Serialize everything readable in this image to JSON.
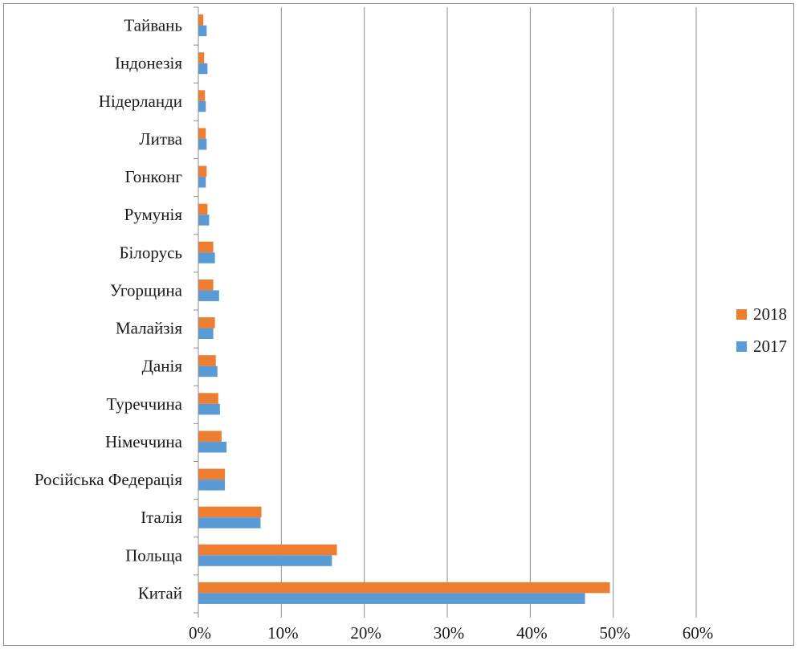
{
  "chart_data": {
    "type": "bar",
    "orientation": "horizontal",
    "categories": [
      "Китай",
      "Польща",
      "Італія",
      "Російська Федерація",
      "Німеччина",
      "Туреччина",
      "Данія",
      "Малайзія",
      "Угорщина",
      "Білорусь",
      "Румунія",
      "Гонконг",
      "Литва",
      "Нідерланди",
      "Індонезія",
      "Тайвань"
    ],
    "series": [
      {
        "name": "2018",
        "color": "#ED7D31",
        "values": [
          49.6,
          16.7,
          7.6,
          3.2,
          2.8,
          2.4,
          2.1,
          2.0,
          1.8,
          1.8,
          1.1,
          1.0,
          0.9,
          0.8,
          0.7,
          0.6
        ]
      },
      {
        "name": "2017",
        "color": "#5B9BD5",
        "values": [
          46.6,
          16.1,
          7.5,
          3.2,
          3.4,
          2.6,
          2.3,
          1.8,
          2.5,
          2.0,
          1.3,
          0.9,
          1.0,
          0.9,
          1.1,
          1.0
        ]
      }
    ],
    "xlim": [
      0,
      60
    ],
    "x_ticks": [
      0,
      10,
      20,
      30,
      40,
      50,
      60
    ],
    "x_tick_labels": [
      "0%",
      "10%",
      "20%",
      "30%",
      "40%",
      "50%",
      "60%"
    ],
    "grid": "vertical",
    "legend_position": "right",
    "legend_order": [
      "2018",
      "2017"
    ],
    "title": "",
    "xlabel": "",
    "ylabel": ""
  }
}
